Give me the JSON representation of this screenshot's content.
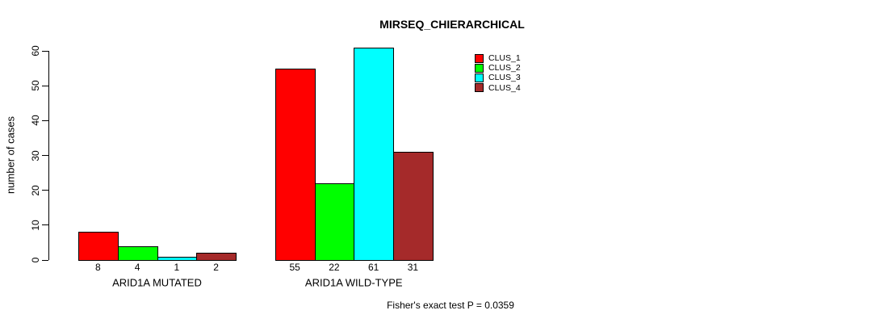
{
  "title": "MIRSEQ_CHIERARCHICAL",
  "ylabel": "number of cases",
  "footnote": "Fisher's exact test P = 0.0359",
  "chart_data": {
    "type": "bar",
    "title": "MIRSEQ_CHIERARCHICAL",
    "xlabel": "",
    "ylabel": "number of cases",
    "categories": [
      "ARID1A MUTATED",
      "ARID1A WILD-TYPE"
    ],
    "series": [
      {
        "name": "CLUS_1",
        "color": "#FF0000",
        "values": [
          8,
          55
        ]
      },
      {
        "name": "CLUS_2",
        "color": "#00FF00",
        "values": [
          4,
          22
        ]
      },
      {
        "name": "CLUS_3",
        "color": "#00FFFF",
        "values": [
          1,
          61
        ]
      },
      {
        "name": "CLUS_4",
        "color": "#A52A2A",
        "values": [
          2,
          31
        ]
      }
    ],
    "bar_value_labels": [
      [
        8,
        4,
        1,
        2
      ],
      [
        55,
        22,
        61,
        31
      ]
    ],
    "yticks": [
      0,
      10,
      20,
      30,
      40,
      50,
      60
    ],
    "ylim": [
      0,
      61
    ],
    "grid": false,
    "legend_position": "top-right",
    "annotation": "Fisher's exact test P = 0.0359"
  }
}
